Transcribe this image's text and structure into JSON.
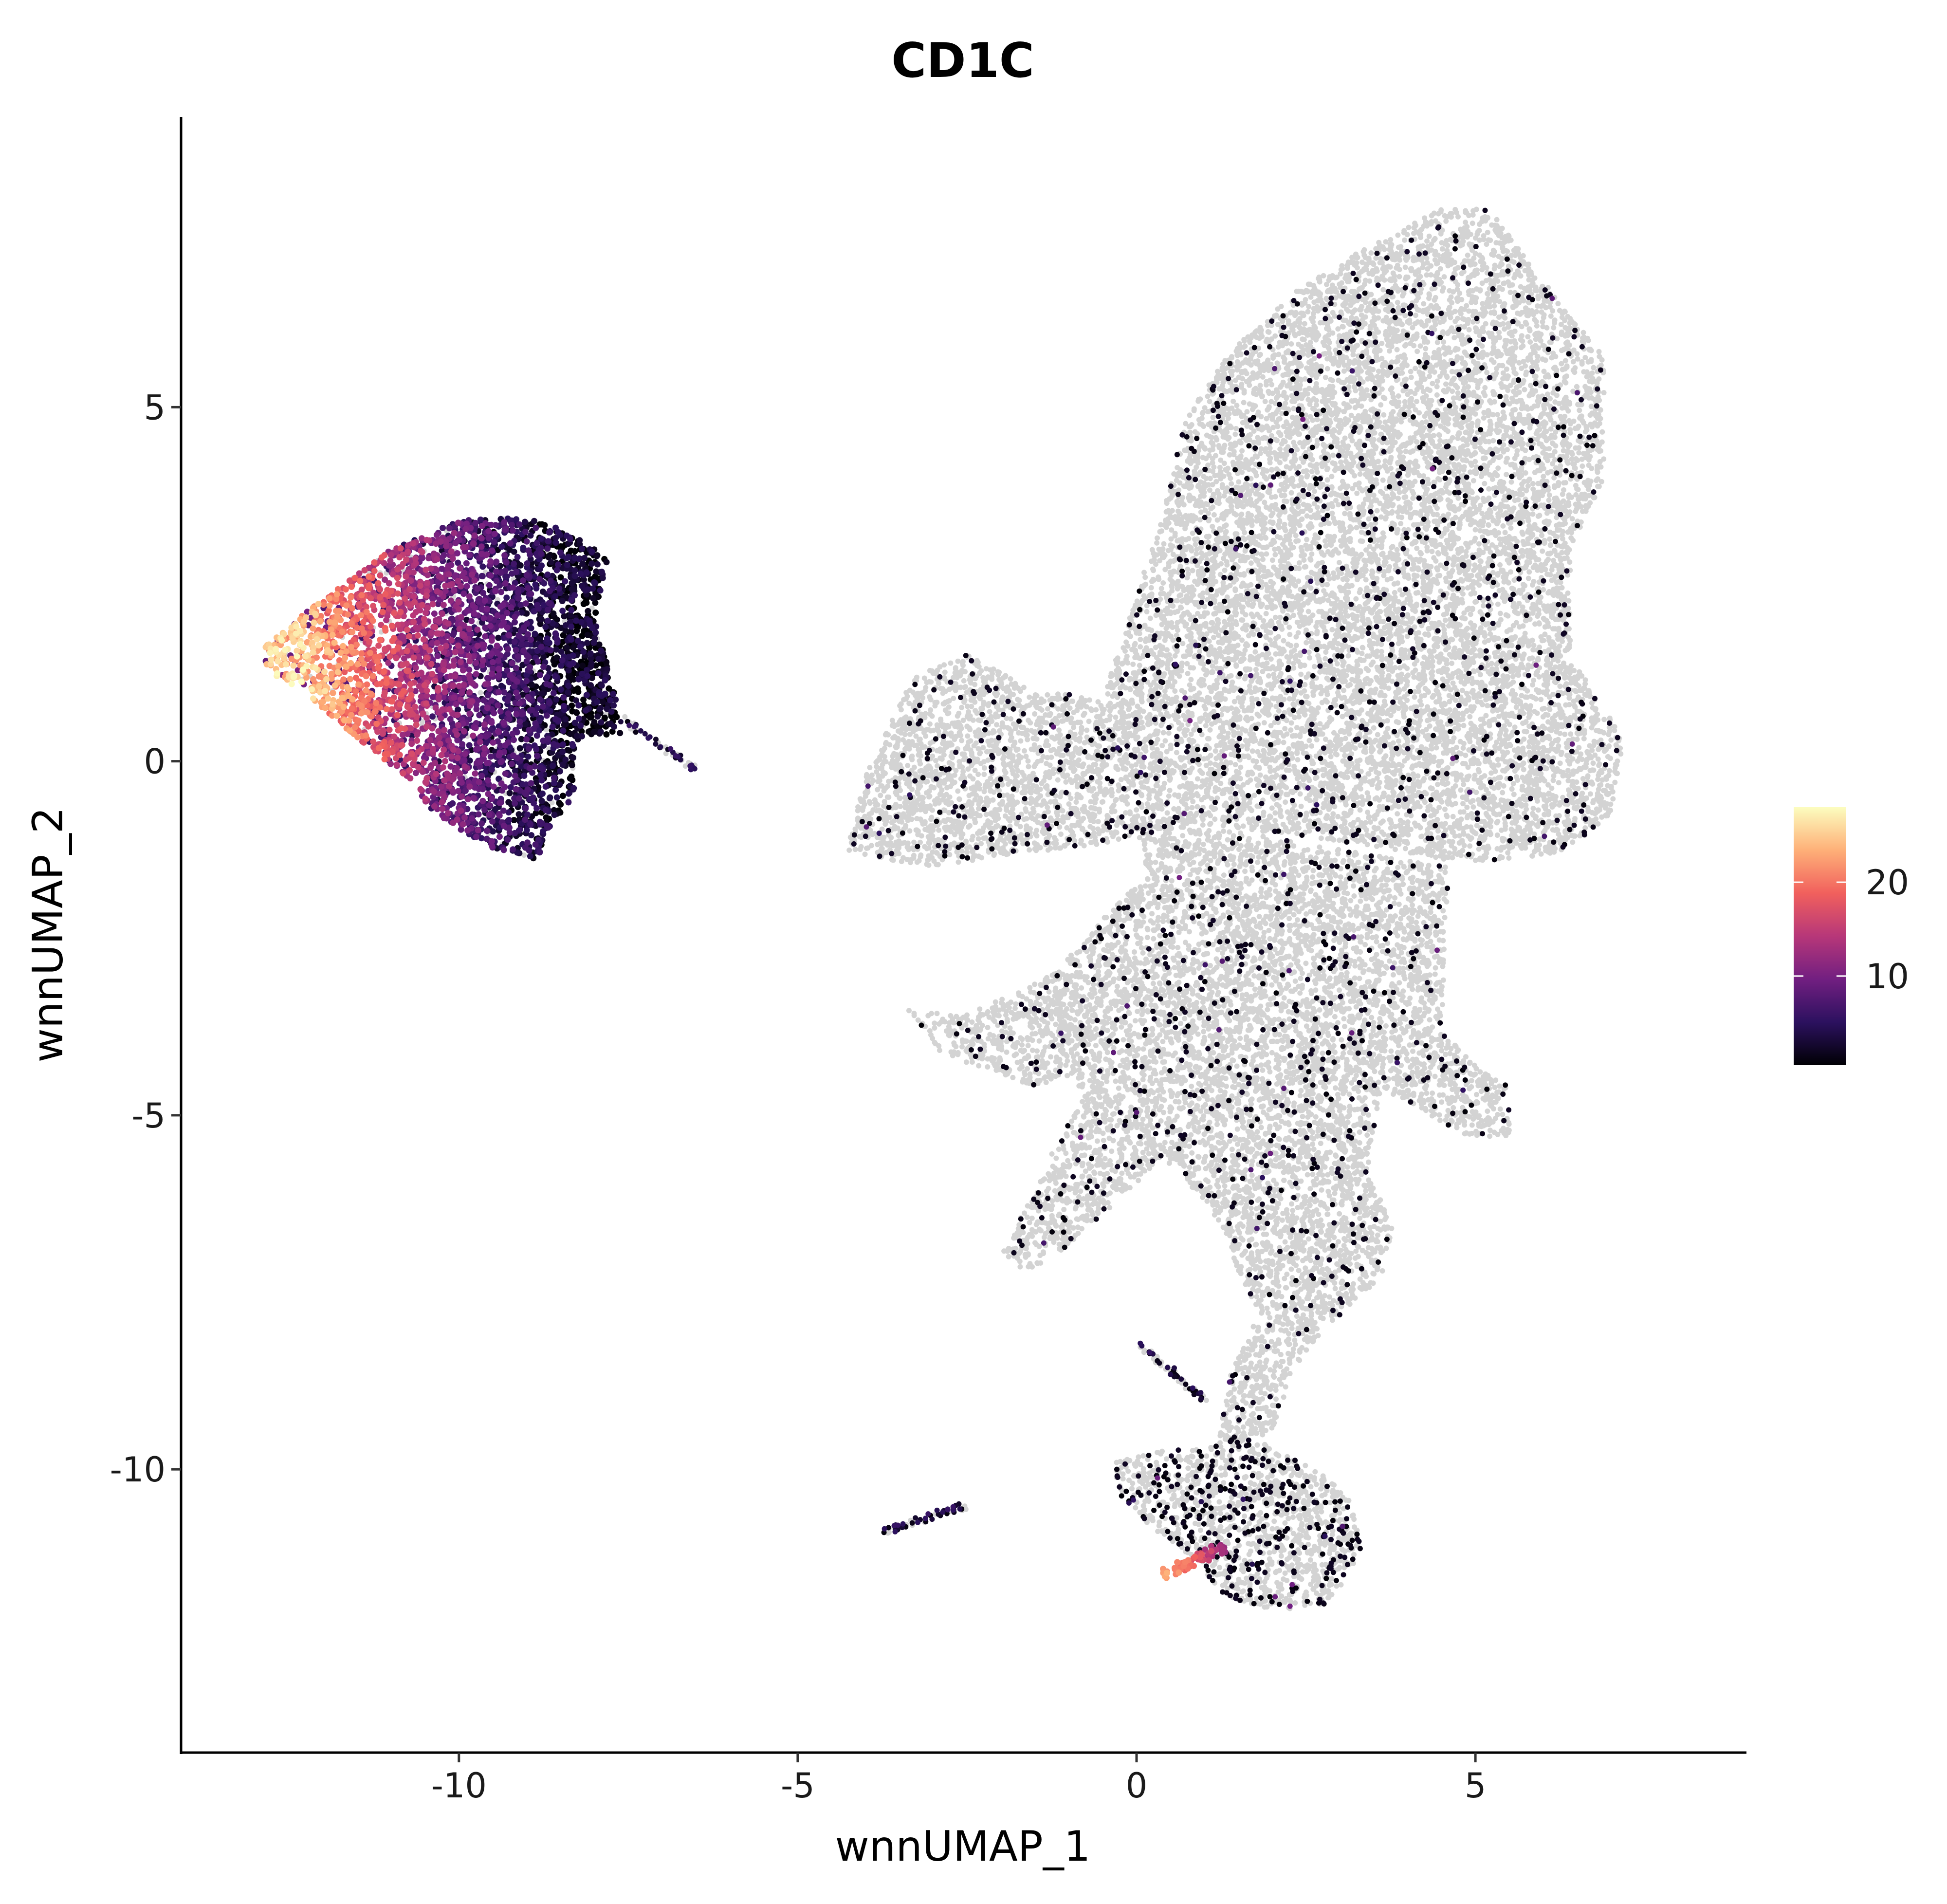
{
  "chart_data": {
    "type": "scatter",
    "title": "CD1C",
    "xlabel": "wnnUMAP_1",
    "ylabel": "wnnUMAP_2",
    "xlim": [
      -14.1,
      9.0
    ],
    "ylim": [
      -14.0,
      9.1
    ],
    "x_ticks": [
      -10,
      -5,
      0,
      5
    ],
    "x_tick_labels": [
      "-10",
      "-5",
      "0",
      "5"
    ],
    "y_ticks": [
      -10,
      -5,
      0,
      5
    ],
    "y_tick_labels": [
      "-10",
      "-5",
      "0",
      "5"
    ],
    "grid": false,
    "legend": {
      "position": "right",
      "type": "colorbar",
      "range": [
        0.5,
        28
      ],
      "ticks": [
        10,
        20
      ],
      "tick_labels": [
        "10",
        "20"
      ],
      "colormap": [
        "#000004",
        "#2c115f",
        "#721f81",
        "#b73779",
        "#f1605d",
        "#feb078",
        "#fcfdbf"
      ],
      "missing_color": "#d3d3d3"
    },
    "clusters": [
      {
        "region": "left cluster",
        "outline": [
          [
            -12.9,
            1.6
          ],
          [
            -12.0,
            2.3
          ],
          [
            -11.0,
            3.0
          ],
          [
            -10.0,
            3.4
          ],
          [
            -9.0,
            3.45
          ],
          [
            -8.3,
            3.2
          ],
          [
            -7.8,
            2.9
          ],
          [
            -8.0,
            2.0
          ],
          [
            -7.7,
            1.0
          ],
          [
            -7.6,
            0.4
          ],
          [
            -8.3,
            0.3
          ],
          [
            -8.3,
            -0.5
          ],
          [
            -8.7,
            -1.0
          ],
          [
            -8.8,
            -1.4
          ],
          [
            -9.6,
            -1.2
          ],
          [
            -10.3,
            -0.8
          ],
          [
            -10.8,
            -0.2
          ],
          [
            -11.6,
            0.4
          ],
          [
            -12.3,
            1.0
          ],
          [
            -12.9,
            1.3
          ]
        ],
        "expression": "high",
        "gradient": {
          "hot_x": -12.3,
          "hot_y": 1.0,
          "hot_value": 24,
          "cold_x": -8.0,
          "cold_value": 1.5
        }
      },
      {
        "region": "left cluster streak",
        "segment": [
          [
            -7.6,
            0.6
          ],
          [
            -6.5,
            -0.1
          ]
        ],
        "expression": "low"
      },
      {
        "region": "upper-right mass",
        "outline": [
          [
            -4.3,
            -1.3
          ],
          [
            -4.0,
            -0.2
          ],
          [
            -3.3,
            1.2
          ],
          [
            -2.5,
            1.5
          ],
          [
            -1.5,
            1.0
          ],
          [
            -0.5,
            0.9
          ],
          [
            0.4,
            3.5
          ],
          [
            0.7,
            4.8
          ],
          [
            1.3,
            5.7
          ],
          [
            2.3,
            6.6
          ],
          [
            3.3,
            7.2
          ],
          [
            4.5,
            7.8
          ],
          [
            5.2,
            7.8
          ],
          [
            6.3,
            6.4
          ],
          [
            6.9,
            5.7
          ],
          [
            6.9,
            4.0
          ],
          [
            6.4,
            3.0
          ],
          [
            6.4,
            1.5
          ],
          [
            7.2,
            0.3
          ],
          [
            7.0,
            -0.8
          ],
          [
            6.2,
            -1.3
          ],
          [
            5.4,
            -1.4
          ],
          [
            4.5,
            -1.4
          ],
          [
            3.5,
            -1.2
          ],
          [
            2.0,
            -1.0
          ],
          [
            0.9,
            -0.9
          ],
          [
            -0.7,
            -1.2
          ],
          [
            -1.8,
            -1.3
          ],
          [
            -3.0,
            -1.5
          ]
        ],
        "expression": "low-sparse"
      },
      {
        "region": "central trunk",
        "outline": [
          [
            -0.1,
            -0.9
          ],
          [
            1.5,
            -1.0
          ],
          [
            3.3,
            -1.3
          ],
          [
            4.6,
            -1.5
          ],
          [
            4.5,
            -3.8
          ],
          [
            5.0,
            -4.3
          ],
          [
            5.5,
            -4.6
          ],
          [
            5.5,
            -5.3
          ],
          [
            4.9,
            -5.3
          ],
          [
            3.6,
            -4.6
          ],
          [
            3.4,
            -5.8
          ],
          [
            3.8,
            -6.6
          ],
          [
            3.6,
            -7.3
          ],
          [
            2.9,
            -7.9
          ],
          [
            2.3,
            -8.6
          ],
          [
            2.0,
            -9.5
          ],
          [
            1.2,
            -9.6
          ],
          [
            1.4,
            -8.6
          ],
          [
            1.8,
            -7.8
          ],
          [
            1.3,
            -6.8
          ],
          [
            1.1,
            -6.3
          ],
          [
            0.4,
            -5.6
          ],
          [
            -0.5,
            -6.4
          ],
          [
            -1.1,
            -6.9
          ],
          [
            -1.6,
            -7.2
          ],
          [
            -2.0,
            -7.0
          ],
          [
            -1.3,
            -5.6
          ],
          [
            -0.8,
            -4.8
          ],
          [
            -0.9,
            -4.4
          ],
          [
            -1.5,
            -4.6
          ],
          [
            -2.4,
            -4.3
          ],
          [
            -2.9,
            -4.1
          ],
          [
            -3.4,
            -3.5
          ],
          [
            -2.6,
            -3.6
          ],
          [
            -1.2,
            -3.0
          ],
          [
            -0.4,
            -2.1
          ],
          [
            0.2,
            -1.6
          ]
        ],
        "expression": "low-sparse"
      },
      {
        "region": "bottom cluster",
        "outline": [
          [
            -0.3,
            -9.9
          ],
          [
            0.3,
            -9.75
          ],
          [
            1.0,
            -9.7
          ],
          [
            1.6,
            -9.5
          ],
          [
            2.2,
            -9.8
          ],
          [
            2.8,
            -10.1
          ],
          [
            3.3,
            -10.6
          ],
          [
            3.3,
            -11.3
          ],
          [
            2.8,
            -11.9
          ],
          [
            2.0,
            -12.0
          ],
          [
            1.3,
            -11.8
          ],
          [
            0.9,
            -11.3
          ],
          [
            0.2,
            -10.8
          ],
          [
            -0.3,
            -10.3
          ]
        ],
        "expression": "low-moderate",
        "hotspot": [
          [
            0.4,
            -11.5
          ],
          [
            1.3,
            -11.1
          ]
        ]
      },
      {
        "region": "small strand left",
        "segment": [
          [
            -3.8,
            -10.9
          ],
          [
            -2.5,
            -10.5
          ]
        ],
        "expression": "low"
      },
      {
        "region": "diagonal strand",
        "segment": [
          [
            0.0,
            -8.2
          ],
          [
            1.0,
            -9.0
          ]
        ],
        "expression": "low"
      }
    ]
  }
}
